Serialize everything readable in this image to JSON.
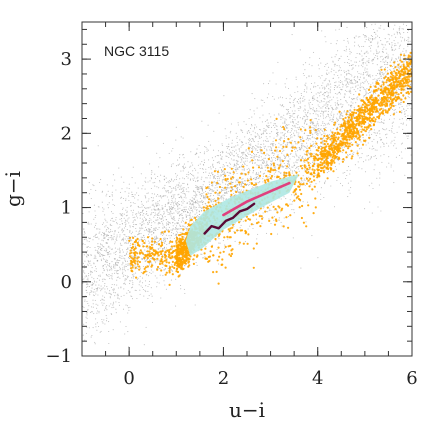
{
  "chart_data": {
    "type": "scatter",
    "title": "",
    "annotation": "NGC 3115",
    "xlabel": "u−i",
    "ylabel": "g−i",
    "xlim": [
      -1,
      6
    ],
    "ylim": [
      -1,
      3.5
    ],
    "xticks": [
      0,
      2,
      4,
      6
    ],
    "yticks": [
      -1,
      0,
      1,
      2,
      3
    ],
    "xtick_labels": [
      "0",
      "2",
      "4",
      "6"
    ],
    "ytick_labels": [
      "−1",
      "0",
      "1",
      "2",
      "3"
    ],
    "grid": false,
    "series": [
      {
        "color": "#a9a9a9",
        "style": "background point cloud",
        "approx_trend": {
          "x": [
            -1.0,
            0.0,
            1.0,
            2.0,
            3.0,
            4.0,
            5.0,
            6.0
          ],
          "y": [
            0.05,
            0.45,
            0.9,
            1.3,
            1.65,
            2.1,
            2.5,
            2.9
          ]
        }
      },
      {
        "color": "#ffa500",
        "style": "orange point cloud",
        "approx_trend": {
          "x": [
            1.0,
            1.5,
            2.0,
            3.0,
            4.0,
            4.5,
            5.0,
            5.5,
            6.0
          ],
          "y": [
            0.35,
            0.65,
            0.9,
            1.25,
            1.6,
            1.9,
            2.25,
            2.55,
            2.85
          ]
        }
      },
      {
        "color": "#aee8e3",
        "style": "cyan filled region",
        "polygon": {
          "x": [
            1.2,
            1.3,
            1.6,
            2.2,
            3.0,
            3.6,
            3.4,
            2.8,
            2.0,
            1.55,
            1.3
          ],
          "y": [
            0.55,
            0.75,
            0.95,
            1.15,
            1.35,
            1.45,
            1.2,
            1.0,
            0.7,
            0.45,
            0.35
          ]
        }
      },
      {
        "color": "#e0407e",
        "style": "magenta track",
        "x": [
          2.0,
          2.5,
          3.0,
          3.4
        ],
        "y": [
          0.9,
          1.08,
          1.22,
          1.33
        ]
      },
      {
        "color": "#5a0a36",
        "style": "dark purple track",
        "x": [
          1.6,
          1.75,
          1.9,
          2.05,
          2.2,
          2.35,
          2.5,
          2.65
        ],
        "y": [
          0.65,
          0.75,
          0.72,
          0.82,
          0.86,
          0.95,
          0.98,
          1.05
        ]
      }
    ]
  }
}
